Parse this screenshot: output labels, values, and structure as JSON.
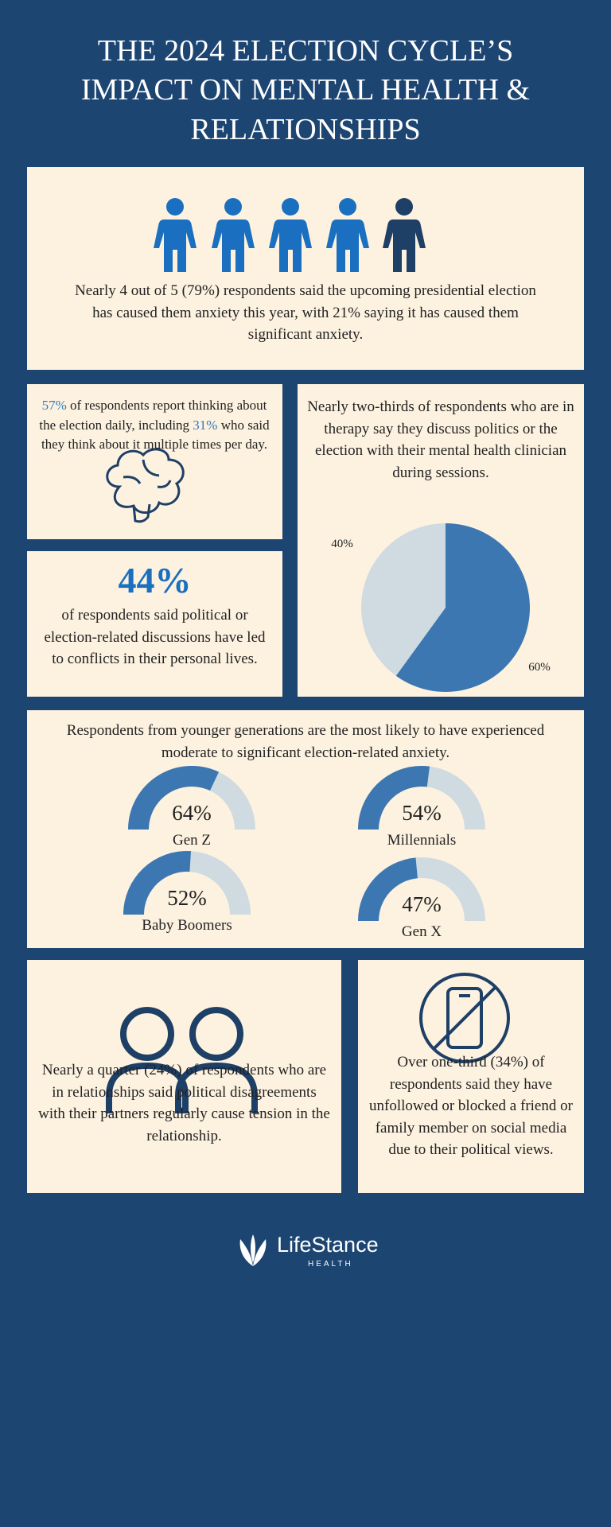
{
  "header": {
    "title": "THE 2024 ELECTION CYCLE’S IMPACT ON MENTAL HEALTH & RELATIONSHIPS"
  },
  "anxiety": {
    "text": "Nearly 4 out of 5 (79%) respondents said the upcoming presidential election has caused them anxiety this year, with 21% saying it has caused them significant anxiety."
  },
  "daily": {
    "parts": [
      "57%",
      " of respondents report thinking about the election daily, including ",
      "31%",
      " who said they think about it multiple times per day."
    ]
  },
  "conflict": {
    "stat": "44%",
    "text": "of respondents said political or election-related discussions have led to conflicts in their personal lives."
  },
  "therapy": {
    "text": "Nearly two-thirds of respondents who are in therapy say they discuss politics or the election with their mental health clinician during sessions.",
    "pie": {
      "values": [
        60,
        40
      ],
      "value_labels": [
        "60%",
        "40%"
      ],
      "colors": [
        "#3d77b1",
        "#cfdbe0"
      ]
    }
  },
  "generations": {
    "text": "Respondents from younger generations are the most likely to have experienced moderate to significant election-related anxiety.",
    "gauges": [
      {
        "name": "Gen Z",
        "value": 64,
        "value_label": "64%"
      },
      {
        "name": "Millennials",
        "value": 54,
        "value_label": "54%"
      },
      {
        "name": "Baby Boomers",
        "value": 52,
        "value_label": "52%"
      },
      {
        "name": "Gen X",
        "value": 47,
        "value_label": "47%"
      }
    ]
  },
  "relationships": {
    "text": "Nearly a quarter (24%) of respondents who are in relationships said political disagreements with their partners regularly cause tension in the relationship."
  },
  "social": {
    "text": "Over one-third (34%) of respondents said they have unfollowed or blocked a friend or family member on social media due to their political views."
  },
  "footer": {
    "brand": "LifeStance",
    "sub": "HEALTH"
  }
}
